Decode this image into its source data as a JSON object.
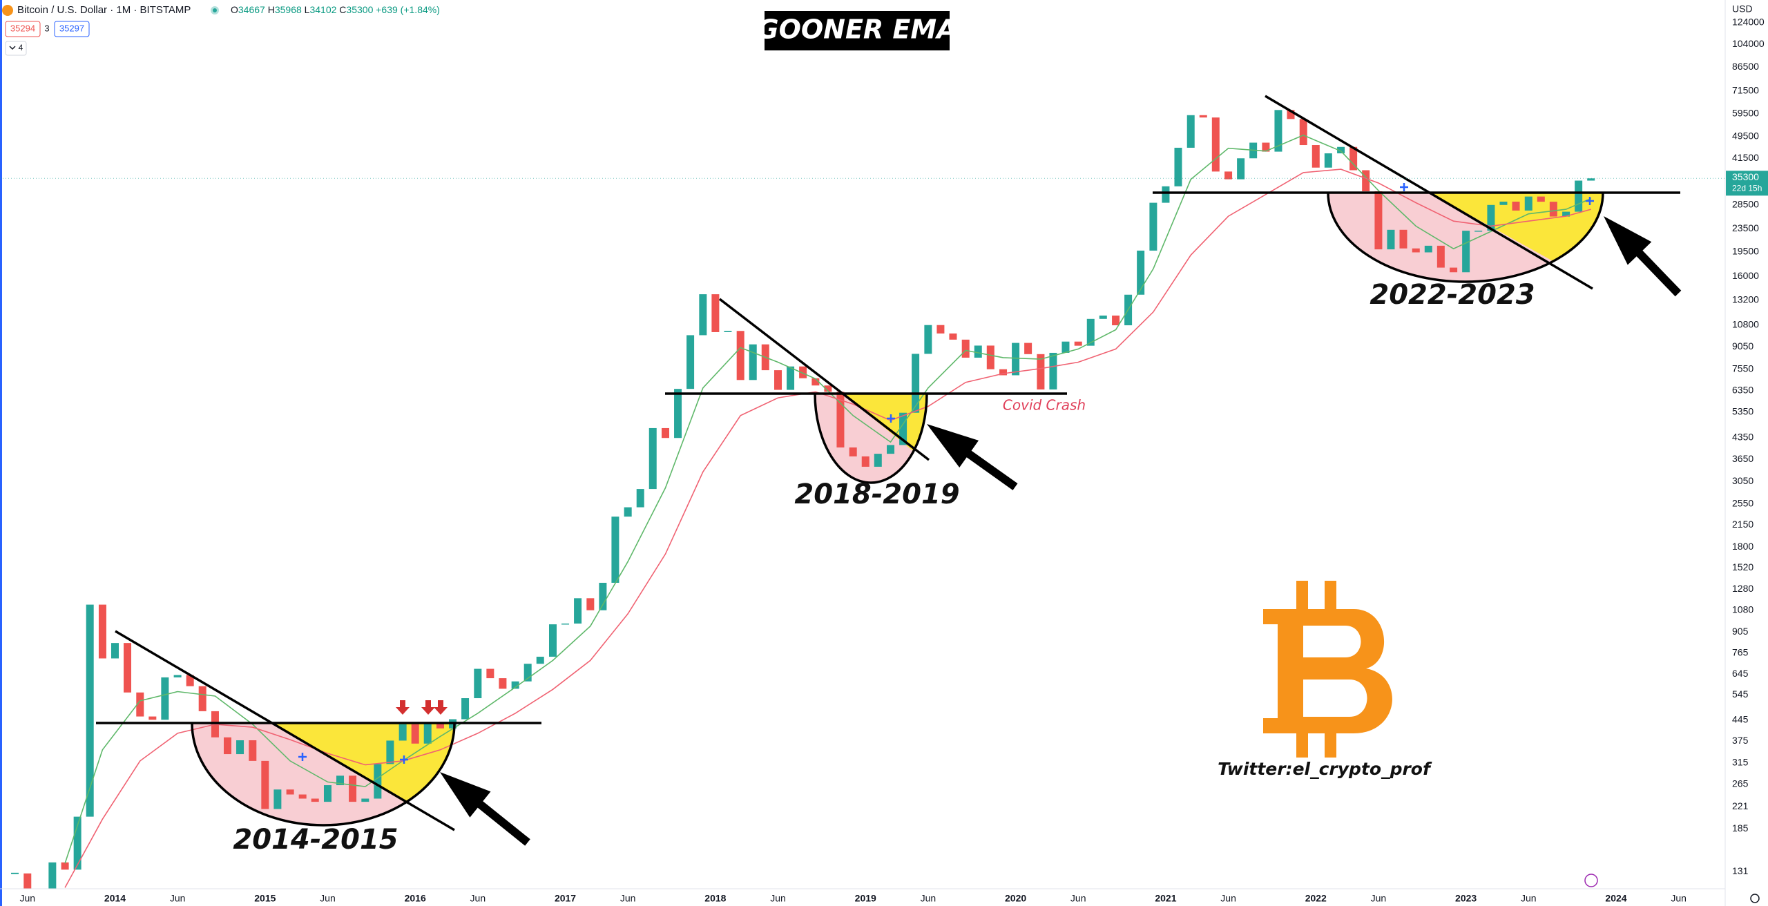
{
  "chart_data": {
    "type": "candlestick",
    "title": "GOONER EMA",
    "header": {
      "symbol": "Bitcoin / U.S. Dollar · 1M · BITSTAMP",
      "ohlc": [
        {
          "label": "O",
          "value": 34667
        },
        {
          "label": "H",
          "value": 35968
        },
        {
          "label": "L",
          "value": 34102
        },
        {
          "label": "C",
          "value": 35300
        }
      ],
      "change": "+639 (+1.84%)",
      "indicators": [
        35294,
        3,
        35297
      ],
      "collapsed": 4
    },
    "currency": "USD",
    "countdown": "22d 15h",
    "annotations": [
      "2014-2015",
      "2018-2019",
      "2022-2023",
      "Covid Crash",
      "Twitter:el_crypto_prof"
    ],
    "up_color": "#26a69a",
    "down_color": "#ef5350",
    "log_scale": true,
    "grid": false,
    "x": [
      2013.333,
      2013.417,
      2013.5,
      2013.583,
      2013.667,
      2013.75,
      2013.833,
      2013.917,
      2014,
      2014.083,
      2014.167,
      2014.25,
      2014.333,
      2014.417,
      2014.5,
      2014.583,
      2014.667,
      2014.75,
      2014.833,
      2014.917,
      2015,
      2015.083,
      2015.167,
      2015.25,
      2015.333,
      2015.417,
      2015.5,
      2015.583,
      2015.667,
      2015.75,
      2015.833,
      2015.917,
      2016,
      2016.083,
      2016.167,
      2016.25,
      2016.333,
      2016.417,
      2016.5,
      2016.583,
      2016.667,
      2016.75,
      2016.833,
      2016.917,
      2017,
      2017.083,
      2017.167,
      2017.25,
      2017.333,
      2017.417,
      2017.5,
      2017.583,
      2017.667,
      2017.75,
      2017.833,
      2017.917,
      2018,
      2018.083,
      2018.167,
      2018.25,
      2018.333,
      2018.417,
      2018.5,
      2018.583,
      2018.667,
      2018.75,
      2018.833,
      2018.917,
      2019,
      2019.083,
      2019.167,
      2019.25,
      2019.333,
      2019.417,
      2019.5,
      2019.583,
      2019.667,
      2019.75,
      2019.833,
      2019.917,
      2020,
      2020.083,
      2020.167,
      2020.25,
      2020.333,
      2020.417,
      2020.5,
      2020.583,
      2020.667,
      2020.75,
      2020.833,
      2020.917,
      2021,
      2021.083,
      2021.167,
      2021.25,
      2021.333,
      2021.417,
      2021.5,
      2021.583,
      2021.667,
      2021.75,
      2021.833,
      2021.917,
      2022,
      2022.083,
      2022.167,
      2022.25,
      2022.333,
      2022.417,
      2022.5,
      2022.583,
      2022.667,
      2022.75,
      2022.833,
      2022.917,
      2023,
      2023.083,
      2023.167,
      2023.25,
      2023.333,
      2023.417,
      2023.5,
      2023.583,
      2023.667,
      2023.75,
      2023.833
    ],
    "close": [
      129,
      97,
      106,
      141,
      133,
      204,
      1130,
      732,
      829,
      556,
      458,
      446,
      628,
      640,
      585,
      478,
      387,
      338,
      378,
      320,
      217,
      254,
      244,
      236,
      230,
      263,
      284,
      230,
      236,
      312,
      377,
      430,
      368,
      437,
      416,
      448,
      531,
      673,
      624,
      573,
      608,
      701,
      742,
      964,
      970,
      1190,
      1080,
      1348,
      2300,
      2480,
      2875,
      4700,
      4340,
      6450,
      9950,
      13850,
      10200,
      10300,
      6930,
      9240,
      7500,
      6400,
      7730,
      7030,
      6630,
      6300,
      4020,
      3740,
      3440,
      3820,
      4100,
      5320,
      8560,
      10800,
      10090,
      9600,
      8300,
      9150,
      7560,
      7200,
      9350,
      8540,
      6420,
      8630,
      9450,
      9140,
      11350,
      11660,
      10780,
      13800,
      19700,
      28990,
      33100,
      45200,
      58800,
      57700,
      37300,
      35040,
      41500,
      47100,
      43800,
      61300,
      57000,
      46200,
      38500,
      43200,
      45500,
      37700,
      31800,
      19900,
      23300,
      20050,
      19420,
      20490,
      17170,
      16540,
      23130,
      23140,
      28480,
      29250,
      27220,
      30480,
      29230,
      25940,
      26970,
      34667,
      35300
    ],
    "ema_lines": [
      {
        "color": "#5fb86a",
        "x": [
          2013.667,
          2013.917,
          2014.167,
          2014.417,
          2014.667,
          2014.917,
          2015.167,
          2015.417,
          2015.667,
          2015.917,
          2016.167,
          2016.417,
          2016.667,
          2016.917,
          2017.167,
          2017.417,
          2017.667,
          2017.917,
          2018.167,
          2018.417,
          2018.667,
          2018.917,
          2019.167,
          2019.417,
          2019.667,
          2019.917,
          2020.167,
          2020.417,
          2020.667,
          2020.917,
          2021.167,
          2021.417,
          2021.667,
          2021.917,
          2022.167,
          2022.417,
          2022.667,
          2022.917,
          2023.167,
          2023.417,
          2023.667,
          2023.833
        ],
        "values": [
          140,
          350,
          520,
          560,
          540,
          430,
          320,
          270,
          260,
          320,
          390,
          470,
          580,
          720,
          950,
          1600,
          2900,
          6500,
          9000,
          8000,
          7000,
          5200,
          4200,
          6500,
          8800,
          8300,
          8200,
          8900,
          10400,
          17000,
          35000,
          45000,
          44000,
          50000,
          44000,
          32000,
          24000,
          20000,
          23000,
          26500,
          27500,
          30000
        ]
      },
      {
        "color": "#f06272",
        "x": [
          2013.667,
          2013.917,
          2014.167,
          2014.417,
          2014.667,
          2014.917,
          2015.167,
          2015.417,
          2015.667,
          2015.917,
          2016.167,
          2016.417,
          2016.667,
          2016.917,
          2017.167,
          2017.417,
          2017.667,
          2017.917,
          2018.167,
          2018.417,
          2018.667,
          2018.917,
          2019.167,
          2019.417,
          2019.667,
          2019.917,
          2020.167,
          2020.417,
          2020.667,
          2020.917,
          2021.167,
          2021.417,
          2021.667,
          2021.917,
          2022.167,
          2022.417,
          2022.667,
          2022.917,
          2023.167,
          2023.417,
          2023.667,
          2023.833
        ],
        "values": [
          115,
          200,
          320,
          400,
          430,
          420,
          380,
          340,
          310,
          320,
          350,
          400,
          470,
          570,
          720,
          1050,
          1700,
          3300,
          5200,
          6000,
          6300,
          5700,
          5000,
          5600,
          6800,
          7300,
          7600,
          8000,
          8900,
          12000,
          19000,
          26000,
          31000,
          37000,
          38000,
          34000,
          29000,
          25000,
          24000,
          25000,
          26000,
          27500
        ]
      }
    ],
    "xlim": [
      2013.234,
      2024.727
    ],
    "xticks": [
      {
        "value": 2013.417,
        "label": "Jun"
      },
      2014,
      {
        "value": 2014.417,
        "label": "Jun"
      },
      2015,
      {
        "value": 2015.417,
        "label": "Jun"
      },
      2016,
      {
        "value": 2016.417,
        "label": "Jun"
      },
      2017,
      {
        "value": 2017.417,
        "label": "Jun"
      },
      2018,
      {
        "value": 2018.417,
        "label": "Jun"
      },
      2019,
      {
        "value": 2019.417,
        "label": "Jun"
      },
      2020,
      {
        "value": 2020.417,
        "label": "Jun"
      },
      2021,
      {
        "value": 2021.417,
        "label": "Jun"
      },
      2022,
      {
        "value": 2022.417,
        "label": "Jun"
      },
      2023,
      {
        "value": 2023.417,
        "label": "Jun"
      },
      2024,
      {
        "value": 2024.417,
        "label": "Jun"
      }
    ],
    "ylim": [
      114,
      149000
    ],
    "yticks": [
      124000,
      104000,
      86500,
      71500,
      59500,
      49500,
      41500,
      28500,
      23500,
      19500,
      16000,
      13200,
      10800,
      9050,
      7550,
      6350,
      5350,
      4350,
      3650,
      3050,
      2550,
      2150,
      1800,
      1520,
      1280,
      1080,
      905,
      765,
      645,
      545,
      445,
      375,
      315,
      265,
      221,
      185,
      131
    ]
  }
}
